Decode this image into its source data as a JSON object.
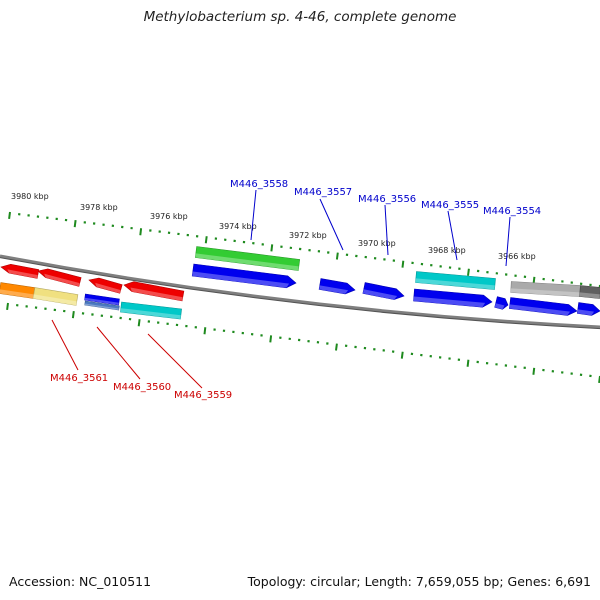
{
  "title": "Methylobacterium sp. 4-46, complete genome",
  "footer": {
    "accession": "Accession: NC_010511",
    "summary": "Topology: circular; Length: 7,659,055 bp; Genes: 6,691"
  },
  "colors": {
    "tick": "#1e8a1e",
    "backbone": "#7f7f7f",
    "label_forward": "#0000cc",
    "label_reverse": "#cc0000",
    "red": "#ee0000",
    "blue": "#0000ee",
    "cyan": "#00c8c8",
    "green": "#33cc33",
    "orange": "#ff8800",
    "khaki": "#f0e080",
    "steel": "#4a78c0",
    "gray": "#aaaaaa",
    "darkgray": "#606060"
  },
  "kbp_labels": [
    "3980 kbp",
    "3978 kbp",
    "3976 kbp",
    "3974 kbp",
    "3972 kbp",
    "3970 kbp",
    "3968 kbp",
    "3966 kbp"
  ],
  "forward_gene_labels": [
    "M446_3558",
    "M446_3557",
    "M446_3556",
    "M446_3555",
    "M446_3554"
  ],
  "reverse_gene_labels": [
    "M446_3561",
    "M446_3560",
    "M446_3559"
  ],
  "genes": [
    {
      "strand": "reverse",
      "lane": "outer",
      "color": "red",
      "shape": "arrow-left"
    },
    {
      "strand": "reverse",
      "lane": "outer",
      "color": "red",
      "shape": "arrow-left"
    },
    {
      "strand": "reverse",
      "lane": "outer",
      "color": "red",
      "shape": "arrow-left"
    },
    {
      "strand": "reverse",
      "lane": "outer",
      "color": "red",
      "shape": "arrow-left"
    },
    {
      "strand": "reverse",
      "lane": "inner",
      "color": "orange",
      "shape": "box"
    },
    {
      "strand": "reverse",
      "lane": "inner",
      "color": "khaki",
      "shape": "box"
    },
    {
      "strand": "reverse",
      "lane": "inner",
      "color": "blue",
      "shape": "box"
    },
    {
      "strand": "reverse",
      "lane": "inner",
      "color": "steel",
      "shape": "box"
    },
    {
      "strand": "reverse",
      "lane": "inner",
      "color": "cyan",
      "shape": "box"
    },
    {
      "strand": "forward",
      "lane": "outer",
      "color": "green",
      "shape": "box"
    },
    {
      "strand": "forward",
      "lane": "outer",
      "color": "cyan",
      "shape": "box"
    },
    {
      "strand": "forward",
      "lane": "outer",
      "color": "gray",
      "shape": "box"
    },
    {
      "strand": "forward",
      "lane": "outer",
      "color": "darkgray",
      "shape": "box"
    },
    {
      "strand": "forward",
      "lane": "inner",
      "color": "blue",
      "shape": "arrow-right"
    },
    {
      "strand": "forward",
      "lane": "inner",
      "color": "blue",
      "shape": "arrow-right"
    },
    {
      "strand": "forward",
      "lane": "inner",
      "color": "blue",
      "shape": "arrow-right"
    },
    {
      "strand": "forward",
      "lane": "inner",
      "color": "blue",
      "shape": "arrow-right"
    },
    {
      "strand": "forward",
      "lane": "inner",
      "color": "blue",
      "shape": "arrow-right"
    },
    {
      "strand": "forward",
      "lane": "inner",
      "color": "blue",
      "shape": "arrow-right"
    },
    {
      "strand": "forward",
      "lane": "inner",
      "color": "blue",
      "shape": "arrow-right"
    }
  ]
}
